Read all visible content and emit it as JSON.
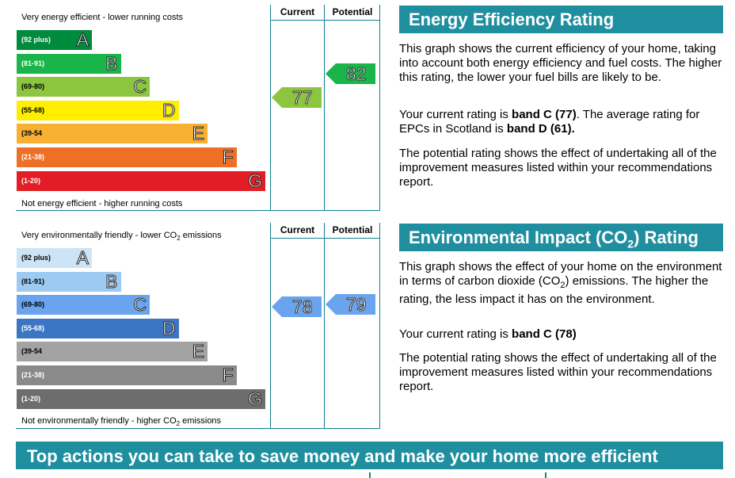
{
  "energy": {
    "top_text": "Very energy efficient - lower running costs",
    "bottom_text": "Not energy efficient - higher running costs",
    "col_current": "Current",
    "col_potential": "Potential",
    "bands": [
      {
        "range": "(92 plus)",
        "letter": "A",
        "color": "#008a3e"
      },
      {
        "range": "(81-91)",
        "letter": "B",
        "color": "#19b44a"
      },
      {
        "range": "(69-80)",
        "letter": "C",
        "color": "#8cc63f"
      },
      {
        "range": "(55-68)",
        "letter": "D",
        "color": "#ffee00"
      },
      {
        "range": "(39-54",
        "letter": "E",
        "color": "#f7b032"
      },
      {
        "range": "(21-38)",
        "letter": "F",
        "color": "#ee7027"
      },
      {
        "range": "(1-20)",
        "letter": "G",
        "color": "#e31d25"
      }
    ],
    "current": {
      "value": "77",
      "band_index": 2,
      "color": "#8cc63f"
    },
    "potential": {
      "value": "82",
      "band_index": 1,
      "color": "#19b44a"
    }
  },
  "environment": {
    "top_text_pre": "Very environmentally friendly - lower CO",
    "top_text_sub": "2",
    "top_text_post": " emissions",
    "bottom_text_pre": "Not environmentally friendly - higher CO",
    "bottom_text_sub": "2",
    "bottom_text_post": " emissions",
    "col_current": "Current",
    "col_potential": "Potential",
    "bands": [
      {
        "range": "(92 plus)",
        "letter": "A",
        "color": "#cce4f6"
      },
      {
        "range": "(81-91)",
        "letter": "B",
        "color": "#9ccaf0"
      },
      {
        "range": "(69-80)",
        "letter": "C",
        "color": "#6aa4ee"
      },
      {
        "range": "(55-68)",
        "letter": "D",
        "color": "#3c75c4"
      },
      {
        "range": "(39-54",
        "letter": "E",
        "color": "#a3a3a3"
      },
      {
        "range": "(21-38)",
        "letter": "F",
        "color": "#8a8a8a"
      },
      {
        "range": "(1-20)",
        "letter": "G",
        "color": "#6d6d6d"
      }
    ],
    "current": {
      "value": "78",
      "band_index": 2,
      "color": "#6aa4ee"
    },
    "potential": {
      "value": "79",
      "band_index": 2,
      "color": "#6aa4ee"
    }
  },
  "energy_panel": {
    "title": "Energy Efficiency Rating",
    "p1": "This graph shows the current efficiency of your home, taking into account both energy efficiency and fuel costs. The higher this rating, the lower your fuel bills are likely to be.",
    "p2_pre": "Your current rating is ",
    "p2_bold1": "band C (77)",
    "p2_mid": ". The average rating for EPCs in Scotland is ",
    "p2_bold2": "band D (61).",
    "p3": "The potential rating shows the effect of undertaking all of the improvement measures listed within your recommendations report."
  },
  "env_panel": {
    "title_pre": "Environmental Impact (CO",
    "title_sub": "2",
    "title_post": ") Rating",
    "p1_pre": "This graph shows the effect of your home on the environment in terms of carbon dioxide (CO",
    "p1_sub": "2",
    "p1_post": ") emissions. The higher the rating, the less impact it has on the environment.",
    "p2_pre": "Your current rating is ",
    "p2_bold": "band C (78)",
    "p3": "The potential rating shows the effect of undertaking all of the improvement measures listed within your recommendations report."
  },
  "banner": {
    "title": "Top actions you can take to save money and make your home more efficient"
  },
  "chart_data": [
    {
      "type": "bar",
      "title": "",
      "categories": [
        "A",
        "B",
        "C",
        "D",
        "E",
        "F",
        "G"
      ],
      "category_ranges": [
        "(92 plus)",
        "(81-91)",
        "(69-80)",
        "(55-68)",
        "(39-54",
        "(21-38)",
        "(1-20)"
      ],
      "current": 77,
      "potential": 82
    },
    {
      "type": "bar",
      "title": "",
      "categories": [
        "A",
        "B",
        "C",
        "D",
        "E",
        "F",
        "G"
      ],
      "category_ranges": [
        "(92 plus)",
        "(81-91)",
        "(69-80)",
        "(55-68)",
        "(39-54",
        "(21-38)",
        "(1-20)"
      ],
      "current": 78,
      "potential": 79
    }
  ]
}
